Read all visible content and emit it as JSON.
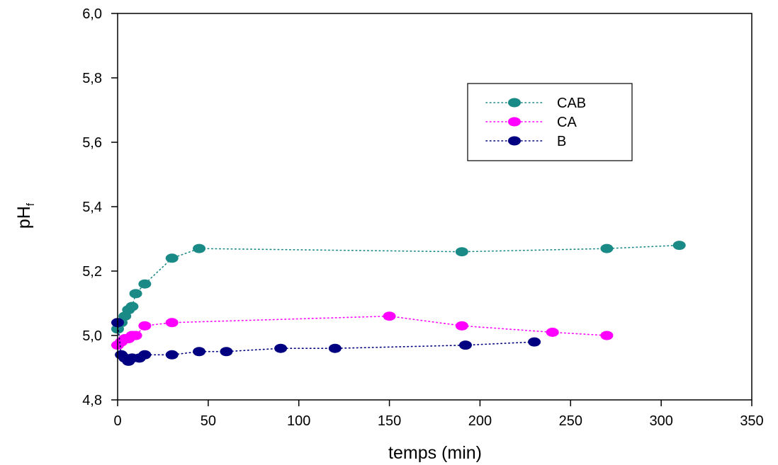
{
  "chart_data": {
    "type": "scatter",
    "title": "",
    "xlabel": "temps (min)",
    "ylabel_main": "pH",
    "ylabel_sub": "f",
    "xlim": [
      0,
      350
    ],
    "ylim": [
      4.8,
      6.0
    ],
    "x_ticks": [
      0,
      50,
      100,
      150,
      200,
      250,
      300,
      350
    ],
    "y_ticks": [
      4.8,
      5.0,
      5.2,
      5.4,
      5.6,
      5.8,
      6.0
    ],
    "y_tick_labels": [
      "4,8",
      "5,0",
      "5,2",
      "5,4",
      "5,6",
      "5,8",
      "6,0"
    ],
    "x_tick_labels": [
      "0",
      "50",
      "100",
      "150",
      "200",
      "250",
      "300",
      "350"
    ],
    "grid": false,
    "legend_position": "top-right",
    "series": [
      {
        "name": "CAB",
        "color": "#1a8a87",
        "line_style": "dotted",
        "x": [
          0,
          2,
          4,
          6,
          8,
          10,
          15,
          30,
          45,
          190,
          270,
          310
        ],
        "y": [
          5.02,
          5.04,
          5.06,
          5.08,
          5.09,
          5.13,
          5.16,
          5.24,
          5.27,
          5.26,
          5.27,
          5.28
        ]
      },
      {
        "name": "CA",
        "color": "#ff00ff",
        "line_style": "dotted",
        "x": [
          0,
          2,
          4,
          6,
          8,
          10,
          15,
          30,
          150,
          190,
          240,
          270
        ],
        "y": [
          4.97,
          4.98,
          4.99,
          4.99,
          5.0,
          5.0,
          5.03,
          5.04,
          5.06,
          5.03,
          5.01,
          5.0
        ],
        "marker_note": "CA"
      },
      {
        "name": "B",
        "color": "#000080",
        "line_style": "dotted",
        "x": [
          0,
          2,
          4,
          6,
          8,
          12,
          15,
          30,
          45,
          60,
          90,
          120,
          192,
          230
        ],
        "y": [
          5.04,
          4.94,
          4.93,
          4.92,
          4.93,
          4.93,
          4.94,
          4.94,
          4.95,
          4.95,
          4.96,
          4.96,
          4.97,
          4.98
        ]
      }
    ]
  }
}
